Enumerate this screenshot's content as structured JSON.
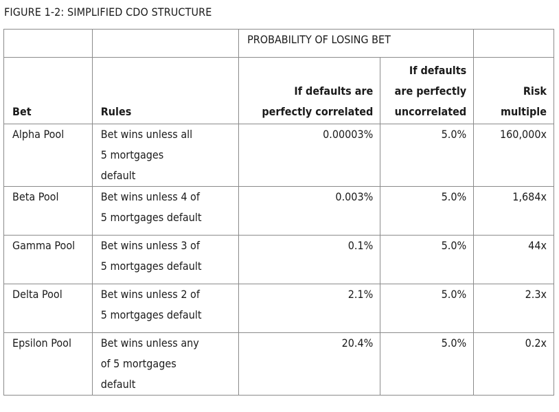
{
  "figure_title": "FIGURE 1-2: SIMPLIFIED CDO STRUCTURE",
  "group_header": "PROBABILITY OF LOSING BET",
  "columns": {
    "bet": "Bet",
    "rules": "Rules",
    "correlated": [
      "If defaults are",
      "perfectly correlated"
    ],
    "uncorrelated": [
      "If defaults",
      "are perfectly",
      "uncorrelated"
    ],
    "risk": [
      "Risk",
      "multiple"
    ]
  },
  "rows": [
    {
      "bet": "Alpha Pool",
      "rules": [
        "Bet wins unless all",
        "5 mortgages",
        "default"
      ],
      "correlated": "0.00003%",
      "uncorrelated": "5.0%",
      "risk": "160,000x"
    },
    {
      "bet": "Beta Pool",
      "rules": [
        "Bet wins unless 4 of",
        "5 mortgages default"
      ],
      "correlated": "0.003%",
      "uncorrelated": "5.0%",
      "risk": "1,684x"
    },
    {
      "bet": "Gamma Pool",
      "rules": [
        "Bet wins unless 3 of",
        "5 mortgages default"
      ],
      "correlated": "0.1%",
      "uncorrelated": "5.0%",
      "risk": "44x"
    },
    {
      "bet": "Delta Pool",
      "rules": [
        "Bet wins unless 2 of",
        "5 mortgages default"
      ],
      "correlated": "2.1%",
      "uncorrelated": "5.0%",
      "risk": "2.3x"
    },
    {
      "bet": "Epsilon Pool",
      "rules": [
        "Bet wins unless any",
        "of 5 mortgages",
        "default"
      ],
      "correlated": "20.4%",
      "uncorrelated": "5.0%",
      "risk": "0.2x"
    }
  ]
}
